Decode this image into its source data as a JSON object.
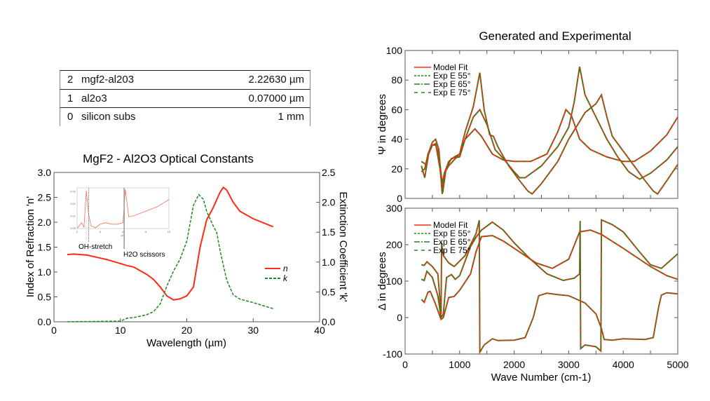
{
  "layer_table": {
    "rows": [
      {
        "index": "2",
        "name": "mgf2-al203",
        "thickness": "2.22630 µm"
      },
      {
        "index": "1",
        "name": "al2o3",
        "thickness": "0.07000 µm"
      },
      {
        "index": "0",
        "name": "silicon subs",
        "thickness": "1 mm"
      }
    ]
  },
  "chart_data": [
    {
      "type": "line",
      "title": "MgF2 - Al2O3 Optical Constants",
      "xlabel": "Wavelength (µm)",
      "ylabel": "Index of Refraction 'n'",
      "y2label": "Extinction Coefficient 'k'",
      "xlim": [
        0,
        40
      ],
      "ylim": [
        0,
        3.0
      ],
      "y2lim": [
        0,
        2.5
      ],
      "xticks": [
        "0",
        "10",
        "20",
        "30",
        "40"
      ],
      "yticks": [
        "0.0",
        "0.5",
        "1.0",
        "1.5",
        "2.0",
        "2.5",
        "3.0"
      ],
      "y2ticks": [
        "0.0",
        "0.5",
        "1.0",
        "1.5",
        "2.0",
        "2.5"
      ],
      "legend_position": "right",
      "series": [
        {
          "name": "n",
          "axis": "left",
          "color": "#ff2a12",
          "style": "solid",
          "x": [
            2,
            3,
            5,
            8,
            10,
            11,
            12,
            14,
            15,
            16,
            17,
            18,
            19,
            20,
            21,
            22,
            23,
            24,
            25,
            25.5,
            26,
            27,
            28,
            30,
            33
          ],
          "y": [
            1.35,
            1.36,
            1.34,
            1.25,
            1.17,
            1.13,
            1.1,
            0.95,
            0.85,
            0.7,
            0.52,
            0.44,
            0.46,
            0.52,
            0.7,
            1.5,
            2.05,
            2.3,
            2.6,
            2.7,
            2.65,
            2.4,
            2.22,
            2.07,
            1.91
          ]
        },
        {
          "name": "k",
          "axis": "right",
          "color": "#1a8a1a",
          "style": "dashed",
          "x": [
            2,
            10,
            11,
            12,
            14,
            15,
            16,
            17,
            18,
            19,
            20,
            21,
            21.8,
            22.5,
            23,
            24,
            24.5,
            25,
            26,
            27,
            28,
            30,
            33
          ],
          "y": [
            0,
            0.01,
            0.06,
            0.07,
            0.12,
            0.17,
            0.3,
            0.6,
            0.85,
            1.05,
            1.35,
            1.95,
            2.13,
            2.05,
            1.85,
            1.6,
            1.5,
            1.2,
            0.7,
            0.45,
            0.38,
            0.32,
            0.22
          ]
        }
      ],
      "inset": {
        "xticks": [
          "2",
          "4",
          "6",
          "8",
          "10"
        ],
        "yticks": [
          "0.00",
          "0.01",
          "0.01",
          "0.02"
        ],
        "xlabel": "µm",
        "x": [
          2,
          2.4,
          2.6,
          2.8,
          3,
          3.2,
          3.6,
          4,
          4.5,
          5,
          5.5,
          6,
          6.2,
          6.5,
          7,
          8,
          9,
          10
        ],
        "y": [
          0,
          0.004,
          0.001,
          0.026,
          0.01,
          0.002,
          0.0005,
          0.003,
          0.004,
          0.003,
          0.003,
          0.004,
          0.027,
          0.008,
          0.009,
          0.012,
          0.015,
          0.02
        ],
        "annotations": [
          {
            "text": "OH-stretch",
            "x": 3
          },
          {
            "text": "H2O scissors",
            "x": 6.1
          }
        ]
      }
    },
    {
      "type": "line",
      "title": "Generated and Experimental",
      "xlabel": "",
      "ylabel": "Ψ in degrees",
      "xlim": [
        0,
        5000
      ],
      "ylim": [
        0,
        100
      ],
      "yticks": [
        "0",
        "20",
        "40",
        "60",
        "80",
        "100"
      ],
      "legend": [
        "Model Fit",
        "Exp E 55°",
        "Exp E 65°",
        "Exp E 75°"
      ],
      "legend_position": "top-left",
      "model_color": "#ff2a12",
      "exp_color": "#1a8a1a",
      "curves": [
        {
          "x": [
            300,
            360,
            420,
            500,
            560,
            620,
            680,
            720,
            800,
            900,
            1000,
            1100,
            1250,
            1370,
            1450,
            1550,
            1620,
            1700,
            1900,
            2100,
            2250,
            2330,
            2500,
            2800,
            3000,
            3200,
            3300,
            3400,
            3500,
            3600,
            3700,
            3800,
            4000,
            4200,
            4400,
            4550,
            4630,
            4800,
            5000
          ],
          "y": [
            18,
            20,
            30,
            38,
            40,
            33,
            3,
            17,
            25,
            28,
            30,
            45,
            62,
            85,
            60,
            43,
            42,
            35,
            22,
            12,
            5,
            3,
            10,
            25,
            40,
            52,
            58,
            61,
            64,
            70,
            55,
            42,
            32,
            22,
            12,
            5,
            3,
            12,
            23
          ]
        },
        {
          "x": [
            300,
            360,
            430,
            500,
            560,
            640,
            690,
            750,
            850,
            1000,
            1100,
            1250,
            1370,
            1500,
            1650,
            1800,
            2000,
            2100,
            2200,
            2500,
            2800,
            3000,
            3100,
            3200,
            3300,
            3500,
            3700,
            3900,
            4100,
            4300,
            4500,
            4800,
            5000
          ],
          "y": [
            22,
            14,
            30,
            36,
            37,
            20,
            4,
            20,
            27,
            28,
            40,
            55,
            60,
            50,
            33,
            27,
            18,
            14,
            14,
            22,
            35,
            48,
            65,
            89,
            70,
            55,
            40,
            28,
            18,
            13,
            17,
            26,
            35
          ]
        },
        {
          "x": [
            300,
            380,
            430,
            500,
            560,
            620,
            680,
            720,
            800,
            900,
            1000,
            1100,
            1280,
            1400,
            1600,
            1800,
            2000,
            2300,
            2600,
            2800,
            2950,
            3050,
            3200,
            3400,
            3700,
            4000,
            4200,
            4500,
            4800,
            5000
          ],
          "y": [
            25,
            23,
            30,
            36,
            36,
            30,
            10,
            17,
            22,
            26,
            30,
            40,
            47,
            42,
            30,
            26,
            25,
            25,
            30,
            45,
            60,
            56,
            40,
            33,
            28,
            25,
            25,
            32,
            43,
            55
          ]
        }
      ]
    },
    {
      "type": "line",
      "xlabel": "Wave Number (cm-1)",
      "ylabel": "Δ in degrees",
      "xlim": [
        0,
        5000
      ],
      "ylim": [
        -100,
        300
      ],
      "xticks": [
        "0",
        "1000",
        "2000",
        "3000",
        "4000",
        "5000"
      ],
      "yticks": [
        "-100",
        "0",
        "100",
        "200",
        "300"
      ],
      "legend": [
        "Model Fit",
        "Exp E 55°",
        "Exp E 65°",
        "Exp E 75°"
      ],
      "legend_position": "top-left",
      "model_color": "#ff2a12",
      "exp_color": "#1a8a1a",
      "curves": [
        {
          "x": [
            300,
            350,
            400,
            500,
            600,
            660,
            670,
            700,
            800,
            900,
            1000,
            1100,
            1200,
            1300,
            1360,
            1370,
            1450,
            1600,
            1700,
            2000,
            2200,
            2350,
            2450,
            2600,
            2800,
            3000,
            3150,
            3300,
            3500,
            3600,
            3650,
            3800,
            4000,
            4400,
            4550,
            4650,
            4700,
            4800,
            5000
          ],
          "y": [
            145,
            143,
            153,
            140,
            120,
            10,
            205,
            170,
            150,
            140,
            155,
            170,
            200,
            230,
            267,
            -95,
            -75,
            -58,
            -63,
            -62,
            -55,
            0,
            60,
            67,
            63,
            60,
            50,
            40,
            10,
            -30,
            -60,
            -62,
            -58,
            -60,
            -55,
            30,
            62,
            68,
            65
          ]
        },
        {
          "x": [
            300,
            350,
            400,
            500,
            600,
            660,
            700,
            760,
            850,
            920,
            1000,
            1200,
            1300,
            1400,
            1600,
            1800,
            2000,
            2300,
            2600,
            2900,
            3100,
            3200,
            3210,
            3220,
            3300,
            3500,
            3590,
            3600,
            3800,
            4000,
            4300,
            4500,
            4700,
            5000
          ],
          "y": [
            105,
            102,
            127,
            110,
            60,
            0,
            10,
            110,
            118,
            105,
            115,
            195,
            220,
            240,
            262,
            240,
            205,
            160,
            120,
            102,
            108,
            120,
            265,
            -85,
            -75,
            -80,
            -92,
            268,
            255,
            235,
            180,
            145,
            135,
            175
          ]
        },
        {
          "x": [
            300,
            350,
            420,
            460,
            550,
            660,
            700,
            800,
            900,
            1000,
            1200,
            1300,
            1400,
            1600,
            1800,
            2100,
            2400,
            2700,
            3000,
            3200,
            3400,
            3600,
            4000,
            4500,
            4800,
            5000
          ],
          "y": [
            50,
            42,
            70,
            72,
            40,
            -5,
            0,
            55,
            58,
            75,
            120,
            180,
            222,
            225,
            210,
            180,
            150,
            135,
            160,
            235,
            240,
            228,
            190,
            140,
            115,
            105
          ]
        }
      ]
    }
  ]
}
